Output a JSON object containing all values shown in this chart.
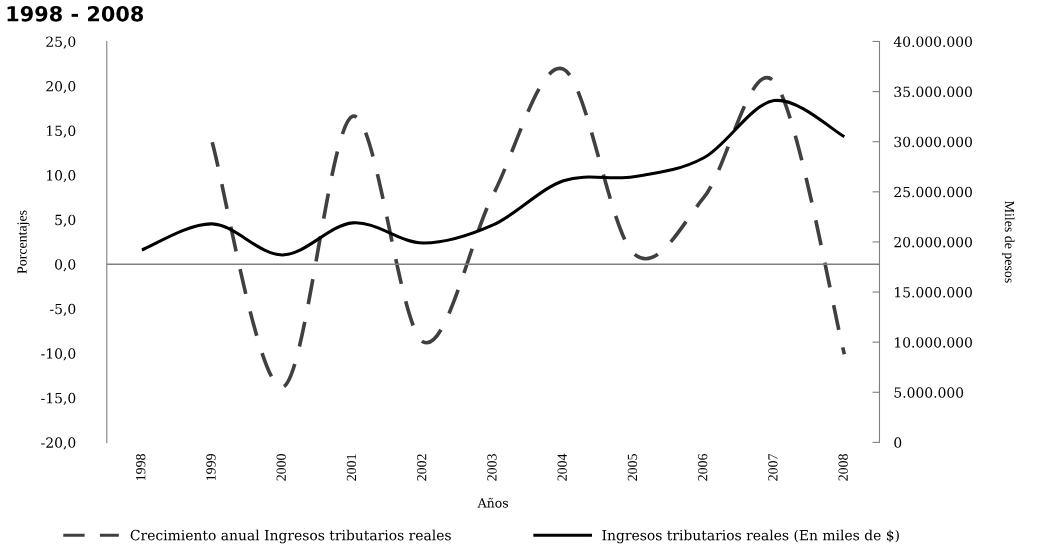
{
  "chart_data": {
    "type": "line",
    "title": "1998 - 2008",
    "xlabel": "Años",
    "ylabel": "Porcentajes",
    "y2label": "Miles de pesos",
    "categories": [
      "1998",
      "1999",
      "2000",
      "2001",
      "2002",
      "2003",
      "2004",
      "2005",
      "2006",
      "2007",
      "2008"
    ],
    "series": [
      {
        "name": "Crecimiento anual Ingresos tributarios reales",
        "color": "#404040",
        "line_style": "dashed",
        "values": [
          null,
          13.7,
          -13.8,
          16.6,
          -8.7,
          7.8,
          21.9,
          1.2,
          7.5,
          20.5,
          -10.1
        ]
      },
      {
        "name": "Ingresos tributarios reales (En miles de $)",
        "color": "#000000",
        "line_style": "solid",
        "axis": "y2",
        "values": [
          19200000,
          21800000,
          18700000,
          21900000,
          19900000,
          21700000,
          26100000,
          26500000,
          28400000,
          34100000,
          30500000
        ]
      }
    ],
    "ylim": [
      -20,
      25
    ],
    "yticks": [
      {
        "value": -20,
        "label": "-20,0"
      },
      {
        "value": -15,
        "label": "-15,0"
      },
      {
        "value": -10,
        "label": "-10,0"
      },
      {
        "value": -5,
        "label": "-5,0"
      },
      {
        "value": 0,
        "label": "0,0"
      },
      {
        "value": 5,
        "label": "5,0"
      },
      {
        "value": 10,
        "label": "10,0"
      },
      {
        "value": 15,
        "label": "15,0"
      },
      {
        "value": 20,
        "label": "20,0"
      },
      {
        "value": 25,
        "label": "25,0"
      }
    ],
    "y2lim": [
      0,
      40000000
    ],
    "y2ticks": [
      0,
      {
        "value": 5000000,
        "label": "5.000.000"
      },
      {
        "value": 10000000,
        "label": "10.000.000"
      },
      {
        "value": 15000000,
        "label": "15.000.000"
      },
      {
        "value": 20000000,
        "label": "20.000.000"
      },
      {
        "value": 25000000,
        "label": "25.000.000"
      },
      {
        "value": 30000000,
        "label": "30.000.000"
      },
      {
        "value": 35000000,
        "label": "35.000.000"
      },
      {
        "value": 40000000,
        "label": "40.000.000"
      }
    ],
    "ref_lines": [
      {
        "axis": "y",
        "value": 0,
        "color": "#808080",
        "line_style": "solid"
      }
    ],
    "grid": false,
    "legend": "bottom",
    "marker": "none"
  }
}
